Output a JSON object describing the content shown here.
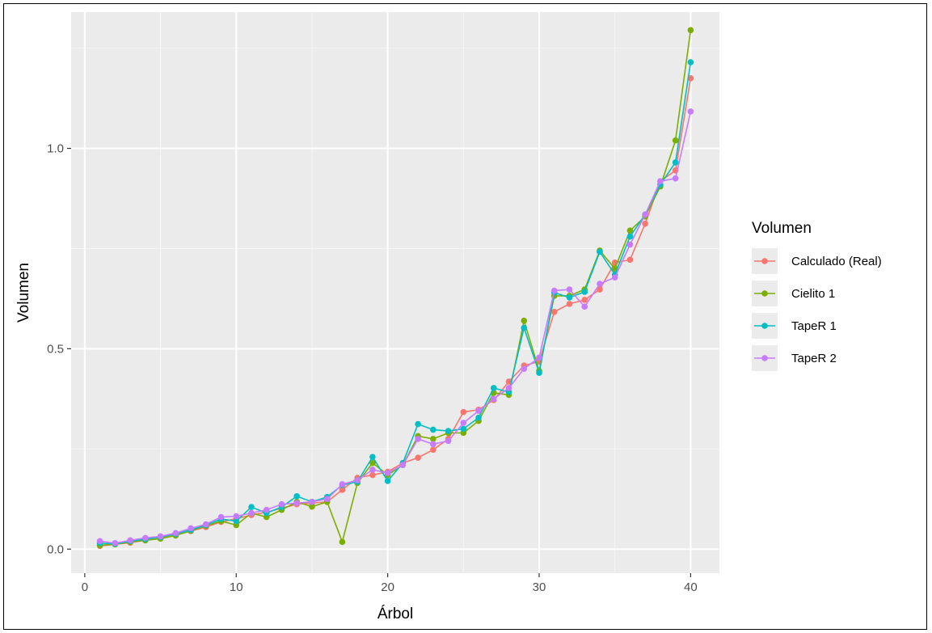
{
  "chart_data": {
    "type": "line",
    "title": "",
    "xlabel": "Árbol",
    "ylabel": "Volumen",
    "xlim": [
      -0.9,
      41.9
    ],
    "ylim": [
      -0.06,
      1.34
    ],
    "x_ticks": [
      0,
      10,
      20,
      30,
      40
    ],
    "x_tick_labels": [
      "0",
      "10",
      "20",
      "30",
      "40"
    ],
    "y_ticks": [
      0.0,
      0.5,
      1.0
    ],
    "y_tick_labels": [
      "0.0",
      "0.5",
      "1.0"
    ],
    "grid": true,
    "legend": {
      "title": "Volumen",
      "position": "right"
    },
    "x": [
      1,
      2,
      3,
      4,
      5,
      6,
      7,
      8,
      9,
      10,
      11,
      12,
      13,
      14,
      15,
      16,
      17,
      18,
      19,
      20,
      21,
      22,
      23,
      24,
      25,
      26,
      27,
      28,
      29,
      30,
      31,
      32,
      33,
      34,
      35,
      36,
      37,
      38,
      39,
      40
    ],
    "series": [
      {
        "name": "Calculado (Real)",
        "color": "#F8766D",
        "values": [
          0.008,
          0.012,
          0.016,
          0.022,
          0.028,
          0.035,
          0.045,
          0.055,
          0.068,
          0.076,
          0.085,
          0.092,
          0.102,
          0.112,
          0.115,
          0.118,
          0.148,
          0.178,
          0.185,
          0.193,
          0.215,
          0.228,
          0.248,
          0.275,
          0.342,
          0.348,
          0.372,
          0.418,
          0.458,
          0.468,
          0.592,
          0.612,
          0.622,
          0.648,
          0.715,
          0.722,
          0.812,
          0.918,
          0.945,
          1.175
        ]
      },
      {
        "name": "Cielito 1",
        "color": "#7CAE00",
        "values": [
          0.01,
          0.012,
          0.018,
          0.022,
          0.026,
          0.034,
          0.046,
          0.058,
          0.07,
          0.06,
          0.09,
          0.08,
          0.098,
          0.118,
          0.106,
          0.118,
          0.018,
          0.165,
          0.215,
          0.185,
          0.21,
          0.282,
          0.275,
          0.29,
          0.29,
          0.32,
          0.39,
          0.385,
          0.57,
          0.445,
          0.632,
          0.632,
          0.648,
          0.745,
          0.7,
          0.795,
          0.83,
          0.905,
          1.02,
          1.295
        ]
      },
      {
        "name": "TapeR 1",
        "color": "#00BFC4",
        "values": [
          0.015,
          0.013,
          0.02,
          0.025,
          0.03,
          0.038,
          0.048,
          0.06,
          0.075,
          0.07,
          0.105,
          0.09,
          0.105,
          0.132,
          0.118,
          0.13,
          0.16,
          0.168,
          0.23,
          0.17,
          0.215,
          0.312,
          0.298,
          0.295,
          0.3,
          0.328,
          0.402,
          0.392,
          0.552,
          0.44,
          0.64,
          0.628,
          0.642,
          0.742,
          0.685,
          0.78,
          0.835,
          0.91,
          0.965,
          1.215
        ]
      },
      {
        "name": "TapeR 2",
        "color": "#C77CFF",
        "values": [
          0.02,
          0.015,
          0.022,
          0.028,
          0.032,
          0.04,
          0.052,
          0.062,
          0.08,
          0.082,
          0.09,
          0.098,
          0.112,
          0.115,
          0.118,
          0.125,
          0.162,
          0.172,
          0.198,
          0.19,
          0.21,
          0.275,
          0.262,
          0.27,
          0.315,
          0.345,
          0.375,
          0.402,
          0.45,
          0.478,
          0.645,
          0.648,
          0.605,
          0.662,
          0.678,
          0.76,
          0.835,
          0.918,
          0.925,
          1.092
        ]
      }
    ]
  }
}
